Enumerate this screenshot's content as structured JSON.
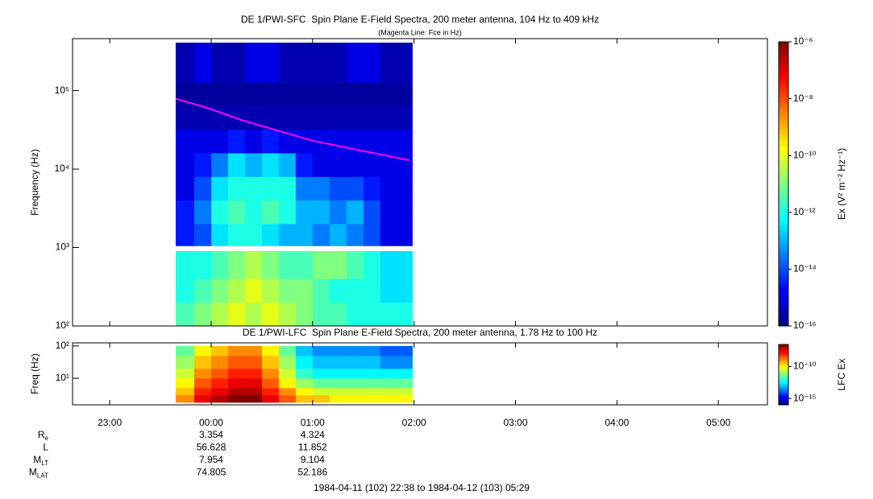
{
  "chart_data": [
    {
      "type": "spectrogram",
      "title": "DE 1/PWI-SFC  Spin Plane E-Field Spectra, 200 meter antenna, 104 Hz to 409 kHz",
      "subtitle": "(Magenta Line: Fce in Hz)",
      "ylabel": "Frequency (Hz)",
      "xlim": [
        -82,
        329
      ],
      "ylim": [
        100,
        460000
      ],
      "log_y": true,
      "yticks": [
        {
          "value": 100,
          "label": "10²"
        },
        {
          "value": 1000,
          "label": "10³"
        },
        {
          "value": 10000,
          "label": "10⁴"
        },
        {
          "value": 100000,
          "label": "10⁵"
        }
      ],
      "x_bins": [
        -21,
        -10,
        0,
        10,
        20,
        30,
        40,
        50,
        60,
        70,
        80,
        90,
        100,
        110,
        119
      ],
      "bands": [
        {
          "y_bins": [
            100,
            200,
            400,
            900
          ],
          "z": [
            [
              3e-12,
              1e-11,
              3e-11,
              1e-10,
              3e-11,
              1e-10,
              3e-11,
              1e-11,
              3e-12,
              3e-12,
              1e-12,
              1e-12,
              1e-12,
              1e-12
            ],
            [
              1e-12,
              3e-12,
              1e-11,
              3e-11,
              1e-10,
              3e-11,
              1e-11,
              1e-11,
              3e-12,
              1e-12,
              1e-12,
              1e-12,
              3e-13,
              3e-13
            ],
            [
              1e-12,
              1e-12,
              3e-12,
              1e-11,
              3e-11,
              1e-11,
              3e-12,
              3e-12,
              1e-11,
              1e-11,
              3e-12,
              1e-12,
              3e-13,
              3e-13
            ]
          ]
        },
        {
          "y_bins": [
            1050,
            2000,
            4000,
            8000,
            16000,
            32000,
            64000,
            128000,
            409000
          ],
          "z": [
            [
              3e-15,
              1e-14,
              3e-13,
              1e-12,
              1e-12,
              3e-13,
              1e-13,
              1e-13,
              3e-14,
              1e-13,
              3e-14,
              1e-14,
              1e-15,
              1e-15
            ],
            [
              3e-15,
              3e-14,
              1e-12,
              3e-12,
              1e-12,
              3e-12,
              1e-12,
              1e-13,
              1e-13,
              3e-14,
              1e-13,
              1e-14,
              1e-15,
              1e-15
            ],
            [
              1e-15,
              1e-14,
              3e-13,
              1e-12,
              1e-12,
              1e-12,
              1e-12,
              3e-14,
              3e-14,
              1e-14,
              1e-14,
              3e-15,
              1e-15,
              1e-15
            ],
            [
              1e-15,
              3e-15,
              3e-14,
              3e-13,
              1e-13,
              3e-13,
              1e-13,
              3e-15,
              1e-15,
              1e-15,
              1e-15,
              1e-15,
              1e-15,
              1e-15
            ],
            [
              1e-15,
              1e-15,
              1e-15,
              3e-15,
              1e-15,
              3e-15,
              1e-15,
              1e-15,
              1e-15,
              1e-15,
              1e-15,
              1e-15,
              1e-15,
              1e-15
            ],
            [
              3e-16,
              3e-16,
              3e-16,
              3e-16,
              3e-16,
              3e-16,
              3e-16,
              3e-16,
              3e-16,
              3e-16,
              3e-16,
              3e-16,
              3e-16,
              3e-16
            ],
            [
              2e-16,
              2e-16,
              2e-16,
              2e-16,
              2e-16,
              2e-16,
              2e-16,
              2e-16,
              2e-16,
              2e-16,
              2e-16,
              2e-16,
              2e-16,
              2e-16
            ],
            [
              3e-16,
              1e-15,
              3e-16,
              3e-16,
              1e-15,
              1e-15,
              3e-16,
              3e-16,
              3e-16,
              3e-16,
              1e-15,
              1e-15,
              3e-16,
              3e-16
            ]
          ]
        }
      ],
      "series": [
        {
          "color": "#ff00ff",
          "x": [
            -21,
            0,
            18,
            60,
            90,
            117
          ],
          "values": [
            79000,
            58000,
            42000,
            23000,
            17000,
            13000
          ]
        }
      ],
      "colorbar": {
        "label": "Ex (V² m⁻² Hz⁻¹)",
        "lim": [
          1e-16,
          1e-06
        ],
        "log": true,
        "ticks": [
          {
            "value": 1e-16,
            "label": "10⁻¹⁶"
          },
          {
            "value": 1e-14,
            "label": "10⁻¹⁴"
          },
          {
            "value": 1e-12,
            "label": "10⁻¹²"
          },
          {
            "value": 1e-10,
            "label": "10⁻¹⁰"
          },
          {
            "value": 1e-08,
            "label": "10⁻⁸"
          },
          {
            "value": 1e-06,
            "label": "10⁻⁶"
          }
        ]
      }
    },
    {
      "type": "spectrogram",
      "title": "DE 1/PWI-LFC  Spin Plane E-Field Spectra, 200 meter antenna, 1.78 Hz to 100 Hz",
      "ylabel": "Freq (Hz)",
      "xlim": [
        -82,
        329
      ],
      "xticks": [
        {
          "value": -60,
          "label": "23:00"
        },
        {
          "value": 0,
          "label": "00:00"
        },
        {
          "value": 60,
          "label": "01:00"
        },
        {
          "value": 120,
          "label": "02:00"
        },
        {
          "value": 180,
          "label": "03:00"
        },
        {
          "value": 240,
          "label": "04:00"
        },
        {
          "value": 300,
          "label": "05:00"
        }
      ],
      "ylim": [
        1.5,
        125
      ],
      "log_y": true,
      "yticks": [
        {
          "value": 10,
          "label": "10¹"
        },
        {
          "value": 100,
          "label": "10²"
        }
      ],
      "x_bins": [
        -21,
        -10,
        0,
        10,
        20,
        30,
        40,
        50,
        60,
        70,
        80,
        90,
        100,
        110,
        119
      ],
      "bands": [
        {
          "y_bins": [
            1.78,
            3,
            5,
            10,
            20,
            50,
            100
          ],
          "z": [
            [
              1e-09,
              3e-08,
              1e-07,
              3e-07,
              3e-07,
              3e-08,
              3e-09,
              3e-10,
              3e-10,
              1e-10,
              1e-10,
              1e-10,
              1e-10,
              1e-10
            ],
            [
              3e-10,
              1e-08,
              3e-08,
              1e-07,
              1e-07,
              1e-08,
              1e-09,
              1e-10,
              3e-11,
              3e-11,
              3e-11,
              3e-11,
              3e-11,
              3e-11
            ],
            [
              1e-10,
              3e-09,
              1e-08,
              3e-08,
              3e-08,
              3e-09,
              1e-10,
              1e-11,
              3e-12,
              3e-12,
              3e-12,
              3e-12,
              3e-12,
              3e-12
            ],
            [
              3e-11,
              1e-09,
              3e-09,
              1e-08,
              1e-08,
              1e-09,
              3e-11,
              1e-12,
              3e-13,
              3e-13,
              3e-13,
              3e-13,
              3e-13,
              3e-13
            ],
            [
              1e-11,
              3e-10,
              1e-09,
              3e-09,
              3e-09,
              3e-10,
              1e-11,
              3e-13,
              1e-13,
              1e-13,
              1e-13,
              1e-13,
              3e-14,
              3e-14
            ],
            [
              3e-12,
              1e-10,
              3e-10,
              1e-09,
              1e-09,
              1e-10,
              3e-12,
              1e-13,
              3e-14,
              3e-14,
              3e-14,
              3e-14,
              1e-14,
              1e-14
            ]
          ]
        }
      ],
      "colorbar": {
        "label": "LFC Ex",
        "lim": [
          1e-16,
          3e-07
        ],
        "log": true,
        "ticks": [
          {
            "value": 1e-15,
            "label": "10⁻¹⁵"
          },
          {
            "value": 1e-10,
            "label": "10⁻¹⁰"
          }
        ]
      }
    }
  ],
  "ephemeris": {
    "x": [
      0,
      60
    ],
    "rows": [
      {
        "label": "R",
        "sub": "e",
        "values": [
          3.354,
          4.324
        ]
      },
      {
        "label": "L",
        "values": [
          56.628,
          11.852
        ]
      },
      {
        "label": "M",
        "sub": "LT",
        "values": [
          7.954,
          9.104
        ]
      },
      {
        "label": "M",
        "sub": "LAT",
        "values": [
          74.805,
          52.186
        ]
      }
    ]
  },
  "footer": "1984-04-11 (102) 22:38 to 1984-04-12 (103) 05:29"
}
